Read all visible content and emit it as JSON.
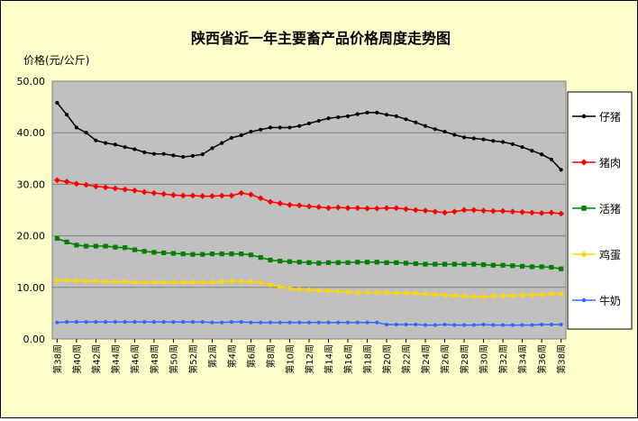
{
  "chart_data": {
    "type": "line",
    "title": "陕西省近一年主要畜产品价格周度走势图",
    "ylabel": "价格(元/公斤)",
    "ylim": [
      0,
      50
    ],
    "yticks": [
      "0.00",
      "10.00",
      "20.00",
      "30.00",
      "40.00",
      "50.00"
    ],
    "grid": true,
    "legend_position": "right",
    "categories": [
      "第38周",
      "第39周",
      "第40周",
      "第41周",
      "第42周",
      "第43周",
      "第44周",
      "第45周",
      "第46周",
      "第47周",
      "第48周",
      "第49周",
      "第50周",
      "第51周",
      "第52周",
      "第1周",
      "第2周",
      "第3周",
      "第4周",
      "第5周",
      "第6周",
      "第7周",
      "第8周",
      "第9周",
      "第10周",
      "第11周",
      "第12周",
      "第13周",
      "第14周",
      "第15周",
      "第16周",
      "第17周",
      "第18周",
      "第19周",
      "第20周",
      "第21周",
      "第22周",
      "第23周",
      "第24周",
      "第25周",
      "第26周",
      "第27周",
      "第28周",
      "第29周",
      "第30周",
      "第31周",
      "第32周",
      "第33周",
      "第34周",
      "第35周",
      "第36周",
      "第37周",
      "第38周"
    ],
    "series": [
      {
        "name": "仔猪",
        "color": "#000000",
        "marker": "circle",
        "values": [
          45.8,
          43.5,
          41.0,
          40.0,
          38.5,
          38.0,
          37.7,
          37.2,
          36.8,
          36.2,
          35.9,
          35.9,
          35.6,
          35.3,
          35.5,
          35.8,
          37.0,
          38.0,
          39.0,
          39.5,
          40.2,
          40.6,
          41.0,
          41.0,
          41.0,
          41.3,
          41.8,
          42.3,
          42.8,
          43.0,
          43.2,
          43.6,
          43.9,
          43.9,
          43.5,
          43.2,
          42.6,
          42.0,
          41.3,
          40.7,
          40.2,
          39.6,
          39.1,
          38.9,
          38.7,
          38.4,
          38.2,
          37.8,
          37.2,
          36.5,
          35.8,
          34.8,
          32.8
        ]
      },
      {
        "name": "猪肉",
        "color": "#ff0000",
        "marker": "diamond",
        "values": [
          30.8,
          30.5,
          30.1,
          29.9,
          29.6,
          29.4,
          29.2,
          29.0,
          28.8,
          28.5,
          28.3,
          28.1,
          27.9,
          27.8,
          27.8,
          27.7,
          27.7,
          27.8,
          27.8,
          28.3,
          28.0,
          27.3,
          26.6,
          26.3,
          26.0,
          25.9,
          25.7,
          25.6,
          25.4,
          25.5,
          25.4,
          25.4,
          25.3,
          25.3,
          25.4,
          25.4,
          25.2,
          25.0,
          24.9,
          24.7,
          24.5,
          24.7,
          25.0,
          25.0,
          24.9,
          24.8,
          24.8,
          24.7,
          24.6,
          24.5,
          24.4,
          24.5,
          24.3
        ]
      },
      {
        "name": "活猪",
        "color": "#008000",
        "marker": "square",
        "values": [
          19.5,
          18.8,
          18.2,
          18.0,
          18.0,
          18.0,
          17.8,
          17.7,
          17.3,
          17.0,
          16.8,
          16.7,
          16.6,
          16.5,
          16.4,
          16.4,
          16.5,
          16.5,
          16.5,
          16.5,
          16.3,
          15.8,
          15.3,
          15.1,
          15.0,
          14.9,
          14.8,
          14.7,
          14.8,
          14.8,
          14.8,
          14.9,
          14.9,
          14.9,
          14.8,
          14.8,
          14.7,
          14.6,
          14.5,
          14.5,
          14.5,
          14.5,
          14.5,
          14.5,
          14.4,
          14.3,
          14.3,
          14.2,
          14.1,
          14.0,
          14.0,
          13.9,
          13.6
        ]
      },
      {
        "name": "鸡蛋",
        "color": "#ffd700",
        "marker": "diamond",
        "values": [
          11.3,
          11.4,
          11.3,
          11.2,
          11.2,
          11.1,
          11.1,
          11.1,
          11.0,
          11.0,
          11.0,
          11.0,
          11.0,
          11.0,
          11.0,
          11.0,
          11.0,
          11.1,
          11.2,
          11.1,
          11.1,
          10.9,
          10.5,
          10.1,
          9.8,
          9.6,
          9.5,
          9.4,
          9.3,
          9.2,
          9.1,
          9.0,
          9.0,
          9.0,
          9.0,
          8.9,
          8.9,
          8.8,
          8.7,
          8.6,
          8.5,
          8.4,
          8.3,
          8.2,
          8.2,
          8.3,
          8.4,
          8.4,
          8.5,
          8.5,
          8.6,
          8.7,
          8.7
        ]
      },
      {
        "name": "牛奶",
        "color": "#3366ff",
        "marker": "circle",
        "values": [
          3.2,
          3.3,
          3.3,
          3.3,
          3.3,
          3.3,
          3.3,
          3.3,
          3.3,
          3.3,
          3.3,
          3.3,
          3.3,
          3.3,
          3.3,
          3.3,
          3.2,
          3.2,
          3.3,
          3.3,
          3.2,
          3.2,
          3.2,
          3.2,
          3.2,
          3.2,
          3.2,
          3.2,
          3.2,
          3.2,
          3.2,
          3.2,
          3.2,
          3.2,
          2.8,
          2.8,
          2.8,
          2.8,
          2.7,
          2.7,
          2.8,
          2.7,
          2.7,
          2.7,
          2.8,
          2.7,
          2.7,
          2.7,
          2.7,
          2.7,
          2.8,
          2.8,
          2.8
        ]
      }
    ]
  }
}
